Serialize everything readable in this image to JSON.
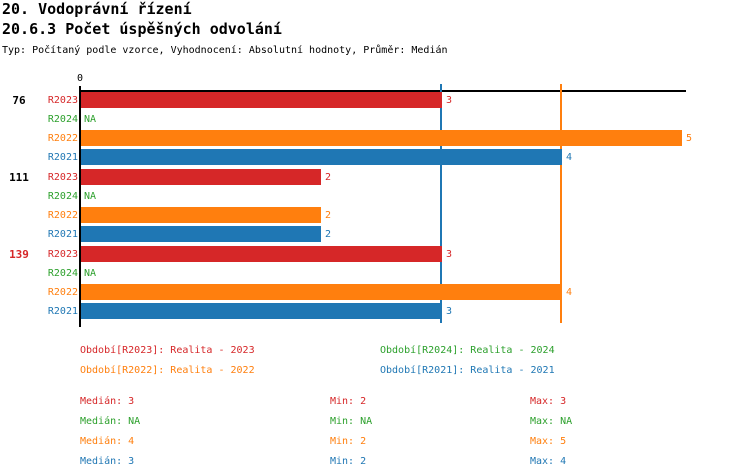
{
  "header": {
    "title": "20. Vodoprávní řízení",
    "subtitle": "20.6.3 Počet úspěšných odvolání",
    "meta": "Typ: Počítaný podle vzorce, Vyhodnocení: Absolutní hodnoty, Průměr: Medián"
  },
  "chart_data": {
    "type": "bar",
    "orientation": "horizontal",
    "x_origin_label": "0",
    "xlim": [
      0,
      5
    ],
    "grid": false,
    "na_text": "NA",
    "series_colors": {
      "R2023": "#d62728",
      "R2024": "#2ca02c",
      "R2022": "#ff7f0e",
      "R2021": "#1f77b4"
    },
    "groups": [
      {
        "label": "76",
        "label_color": "#000000",
        "bars": [
          {
            "series": "R2023",
            "value": 3,
            "label": "3"
          },
          {
            "series": "R2024",
            "value": null,
            "label": "NA"
          },
          {
            "series": "R2022",
            "value": 5,
            "label": "5"
          },
          {
            "series": "R2021",
            "value": 4,
            "label": "4"
          }
        ]
      },
      {
        "label": "111",
        "label_color": "#000000",
        "bars": [
          {
            "series": "R2023",
            "value": 2,
            "label": "2"
          },
          {
            "series": "R2024",
            "value": null,
            "label": "NA"
          },
          {
            "series": "R2022",
            "value": 2,
            "label": "2"
          },
          {
            "series": "R2021",
            "value": 2,
            "label": "2"
          }
        ]
      },
      {
        "label": "139",
        "label_color": "#d62728",
        "bars": [
          {
            "series": "R2023",
            "value": 3,
            "label": "3"
          },
          {
            "series": "R2024",
            "value": null,
            "label": "NA"
          },
          {
            "series": "R2022",
            "value": 4,
            "label": "4"
          },
          {
            "series": "R2021",
            "value": 3,
            "label": "3"
          }
        ]
      }
    ],
    "reference_lines": [
      {
        "name": "median-r2021",
        "value": 3,
        "color": "#1f77b4"
      },
      {
        "name": "median-r2022",
        "value": 4,
        "color": "#ff7f0e"
      }
    ]
  },
  "legend": {
    "items": [
      {
        "label": "Období[R2023]: Realita - 2023",
        "color": "#d62728"
      },
      {
        "label": "Období[R2024]: Realita - 2024",
        "color": "#2ca02c"
      },
      {
        "label": "Období[R2022]: Realita - 2022",
        "color": "#ff7f0e"
      },
      {
        "label": "Období[R2021]: Realita - 2021",
        "color": "#1f77b4"
      }
    ]
  },
  "stats": {
    "rows": [
      {
        "series": "R2023",
        "color": "#d62728",
        "median": "Medián: 3",
        "min": "Min: 2",
        "max": "Max: 3"
      },
      {
        "series": "R2024",
        "color": "#2ca02c",
        "median": "Medián: NA",
        "min": "Min: NA",
        "max": "Max: NA"
      },
      {
        "series": "R2022",
        "color": "#ff7f0e",
        "median": "Medián: 4",
        "min": "Min: 2",
        "max": "Max: 5"
      },
      {
        "series": "R2021",
        "color": "#1f77b4",
        "median": "Medián: 3",
        "min": "Min: 2",
        "max": "Max: 4"
      }
    ]
  }
}
